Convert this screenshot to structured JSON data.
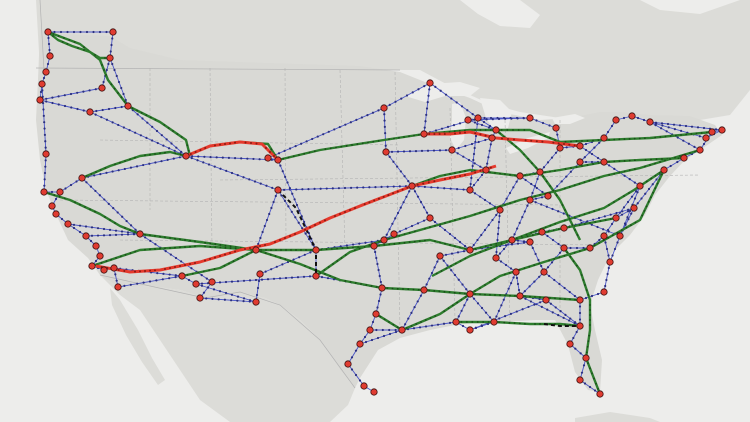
{
  "map": {
    "region": "continental-united-states",
    "colors": {
      "water": "#ededeb",
      "land": "#dcdcd8",
      "lakes": "#ededeb",
      "border": "#b3b3b3",
      "node_fill": "#e03c31",
      "node_stroke": "#3a1010",
      "green_route": "#2e7d2e",
      "red_route": "#e5392c",
      "blue_link": "#4a55c8",
      "dashed_link": "#111111"
    },
    "legend": null,
    "labels": []
  }
}
